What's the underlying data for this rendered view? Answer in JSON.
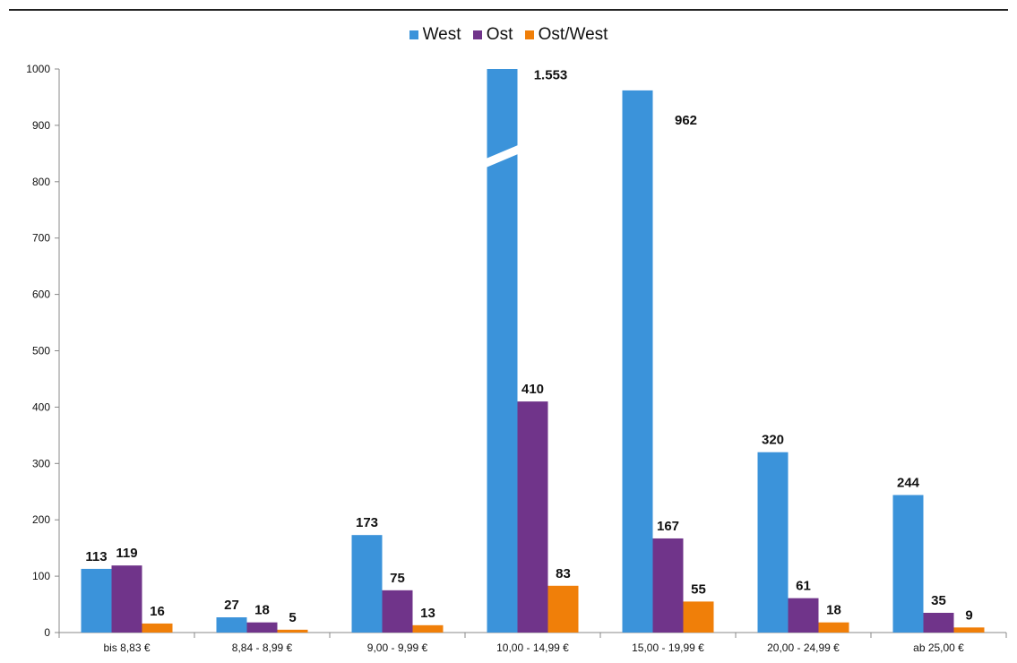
{
  "chart_data": {
    "type": "bar",
    "categories": [
      "bis 8,83 €",
      "8,84 - 8,99 €",
      "9,00 - 9,99 €",
      "10,00 - 14,99 €",
      "15,00 - 19,99 €",
      "20,00 - 24,99 €",
      "ab 25,00 €"
    ],
    "series": [
      {
        "name": "West",
        "color": "#3b93da",
        "values": [
          113,
          27,
          173,
          1553,
          962,
          320,
          244
        ],
        "labels": [
          "113",
          "27",
          "173",
          "1.553",
          "962",
          "320",
          "244"
        ]
      },
      {
        "name": "Ost",
        "color": "#70348a",
        "values": [
          119,
          18,
          75,
          410,
          167,
          61,
          35
        ],
        "labels": [
          "119",
          "18",
          "75",
          "410",
          "167",
          "61",
          "35"
        ]
      },
      {
        "name": "Ost/West",
        "color": "#f07f09",
        "values": [
          16,
          5,
          13,
          83,
          55,
          18,
          9
        ],
        "labels": [
          "16",
          "5",
          "13",
          "83",
          "55",
          "18",
          "9"
        ]
      }
    ],
    "ylim": [
      0,
      1000
    ],
    "yticks": [
      0,
      100,
      200,
      300,
      400,
      500,
      600,
      700,
      800,
      900,
      1000
    ],
    "axis_break": {
      "series": "West",
      "category": "10,00 - 14,99 €"
    },
    "legend_position": "top-center",
    "grid": false
  }
}
